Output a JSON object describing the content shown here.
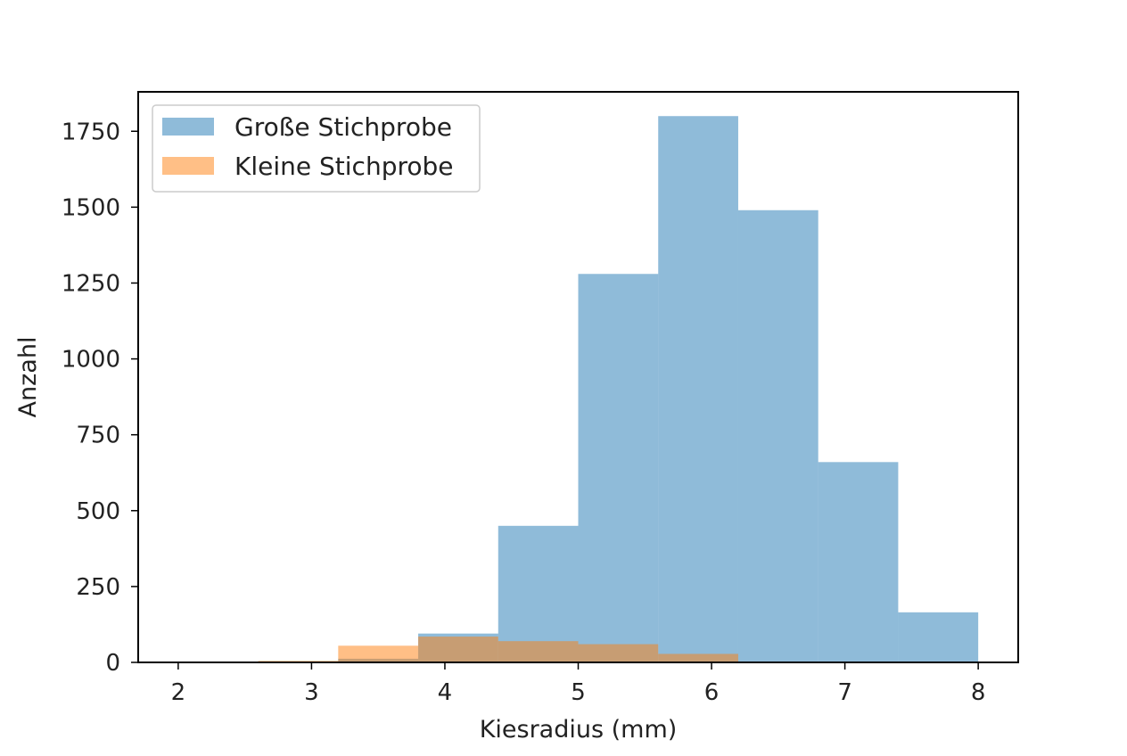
{
  "chart_data": {
    "type": "bar",
    "xlabel": "Kiesradius (mm)",
    "ylabel": "Anzahl",
    "xlim": [
      1.7,
      8.3
    ],
    "ylim": [
      0,
      1880
    ],
    "xticks": [
      2,
      3,
      4,
      5,
      6,
      7,
      8
    ],
    "yticks": [
      0,
      250,
      500,
      750,
      1000,
      1250,
      1500,
      1750
    ],
    "grid": false,
    "legend_position": "top-left",
    "series": [
      {
        "name": "Große Stichprobe",
        "color": "#1f77b4",
        "opacity": 0.5,
        "bins": [
          {
            "x0": 2.0,
            "x1": 2.6,
            "value": 0
          },
          {
            "x0": 2.6,
            "x1": 3.2,
            "value": 2
          },
          {
            "x0": 3.2,
            "x1": 3.8,
            "value": 12
          },
          {
            "x0": 3.8,
            "x1": 4.4,
            "value": 95
          },
          {
            "x0": 4.4,
            "x1": 5.0,
            "value": 450
          },
          {
            "x0": 5.0,
            "x1": 5.6,
            "value": 1280
          },
          {
            "x0": 5.6,
            "x1": 6.2,
            "value": 1800
          },
          {
            "x0": 6.2,
            "x1": 6.8,
            "value": 1490
          },
          {
            "x0": 6.8,
            "x1": 7.4,
            "value": 660
          },
          {
            "x0": 7.4,
            "x1": 8.0,
            "value": 165
          }
        ]
      },
      {
        "name": "Kleine Stichprobe",
        "color": "#ff7f0e",
        "opacity": 0.5,
        "bins": [
          {
            "x0": 2.0,
            "x1": 2.6,
            "value": 0
          },
          {
            "x0": 2.6,
            "x1": 3.2,
            "value": 5
          },
          {
            "x0": 3.2,
            "x1": 3.8,
            "value": 55
          },
          {
            "x0": 3.8,
            "x1": 4.4,
            "value": 85
          },
          {
            "x0": 4.4,
            "x1": 5.0,
            "value": 70
          },
          {
            "x0": 5.0,
            "x1": 5.6,
            "value": 60
          },
          {
            "x0": 5.6,
            "x1": 6.2,
            "value": 28
          },
          {
            "x0": 6.2,
            "x1": 6.8,
            "value": 0
          },
          {
            "x0": 6.8,
            "x1": 7.4,
            "value": 0
          },
          {
            "x0": 7.4,
            "x1": 8.0,
            "value": 0
          }
        ]
      }
    ]
  }
}
